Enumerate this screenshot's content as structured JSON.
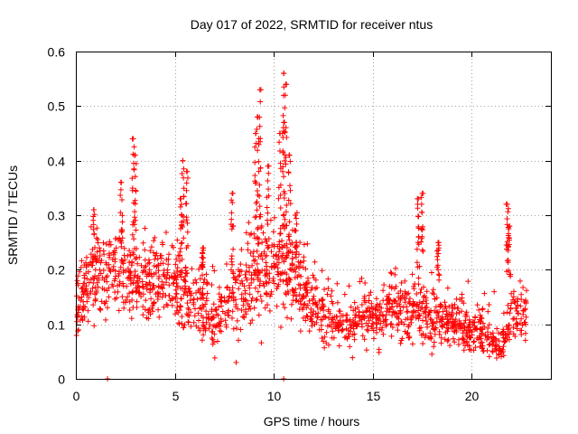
{
  "chart_data": {
    "type": "scatter",
    "title": "Day 017 of 2022, SRMTID for receiver ntus",
    "xlabel": "GPS time / hours",
    "ylabel": "SRMTID / TECUs",
    "xlim": [
      0,
      24
    ],
    "ylim": [
      0,
      0.6
    ],
    "xticks": [
      0,
      5,
      10,
      15,
      20
    ],
    "xtick_labels": [
      "0",
      "5",
      "10",
      "15",
      "20"
    ],
    "yticks": [
      0,
      0.1,
      0.2,
      0.3,
      0.4,
      0.5,
      0.6
    ],
    "ytick_labels": [
      "0",
      "0.1",
      "0.2",
      "0.3",
      "0.4",
      "0.5",
      "0.6"
    ],
    "grid": true,
    "marker": "plus",
    "color": "#ff0000",
    "x_range_data": [
      0,
      22.8
    ],
    "background_profile": [
      {
        "x": 0.0,
        "base": 0.13,
        "spread": 0.05
      },
      {
        "x": 1.0,
        "base": 0.19,
        "spread": 0.07
      },
      {
        "x": 2.0,
        "base": 0.2,
        "spread": 0.07
      },
      {
        "x": 3.0,
        "base": 0.18,
        "spread": 0.07
      },
      {
        "x": 4.0,
        "base": 0.18,
        "spread": 0.07
      },
      {
        "x": 5.0,
        "base": 0.17,
        "spread": 0.07
      },
      {
        "x": 6.0,
        "base": 0.15,
        "spread": 0.06
      },
      {
        "x": 7.0,
        "base": 0.1,
        "spread": 0.05
      },
      {
        "x": 8.0,
        "base": 0.15,
        "spread": 0.07
      },
      {
        "x": 9.0,
        "base": 0.19,
        "spread": 0.08
      },
      {
        "x": 10.0,
        "base": 0.2,
        "spread": 0.08
      },
      {
        "x": 11.0,
        "base": 0.19,
        "spread": 0.08
      },
      {
        "x": 12.0,
        "base": 0.13,
        "spread": 0.05
      },
      {
        "x": 13.0,
        "base": 0.1,
        "spread": 0.04
      },
      {
        "x": 14.0,
        "base": 0.1,
        "spread": 0.04
      },
      {
        "x": 15.0,
        "base": 0.12,
        "spread": 0.05
      },
      {
        "x": 16.0,
        "base": 0.13,
        "spread": 0.06
      },
      {
        "x": 17.0,
        "base": 0.13,
        "spread": 0.06
      },
      {
        "x": 18.0,
        "base": 0.11,
        "spread": 0.05
      },
      {
        "x": 19.0,
        "base": 0.1,
        "spread": 0.04
      },
      {
        "x": 20.0,
        "base": 0.09,
        "spread": 0.04
      },
      {
        "x": 21.0,
        "base": 0.07,
        "spread": 0.03
      },
      {
        "x": 21.5,
        "base": 0.05,
        "spread": 0.03
      },
      {
        "x": 22.0,
        "base": 0.12,
        "spread": 0.05
      },
      {
        "x": 22.8,
        "base": 0.12,
        "spread": 0.04
      }
    ],
    "peaks": [
      {
        "x": 0.9,
        "y": 0.31
      },
      {
        "x": 2.3,
        "y": 0.36
      },
      {
        "x": 2.9,
        "y": 0.44
      },
      {
        "x": 3.0,
        "y": 0.41
      },
      {
        "x": 5.4,
        "y": 0.4
      },
      {
        "x": 5.6,
        "y": 0.38
      },
      {
        "x": 5.3,
        "y": 0.33
      },
      {
        "x": 6.4,
        "y": 0.24
      },
      {
        "x": 7.9,
        "y": 0.34
      },
      {
        "x": 9.1,
        "y": 0.45
      },
      {
        "x": 9.3,
        "y": 0.53
      },
      {
        "x": 9.2,
        "y": 0.48
      },
      {
        "x": 9.7,
        "y": 0.39
      },
      {
        "x": 10.3,
        "y": 0.45
      },
      {
        "x": 10.5,
        "y": 0.56
      },
      {
        "x": 10.6,
        "y": 0.54
      },
      {
        "x": 10.5,
        "y": 0.47
      },
      {
        "x": 10.8,
        "y": 0.41
      },
      {
        "x": 11.1,
        "y": 0.3
      },
      {
        "x": 17.3,
        "y": 0.33
      },
      {
        "x": 17.5,
        "y": 0.34
      },
      {
        "x": 18.3,
        "y": 0.25
      },
      {
        "x": 21.8,
        "y": 0.32
      },
      {
        "x": 21.9,
        "y": 0.28
      }
    ],
    "outliers": [
      {
        "x": 1.6,
        "y": 0.0
      },
      {
        "x": 10.5,
        "y": 0.0
      },
      {
        "x": 8.1,
        "y": 0.03
      }
    ]
  }
}
